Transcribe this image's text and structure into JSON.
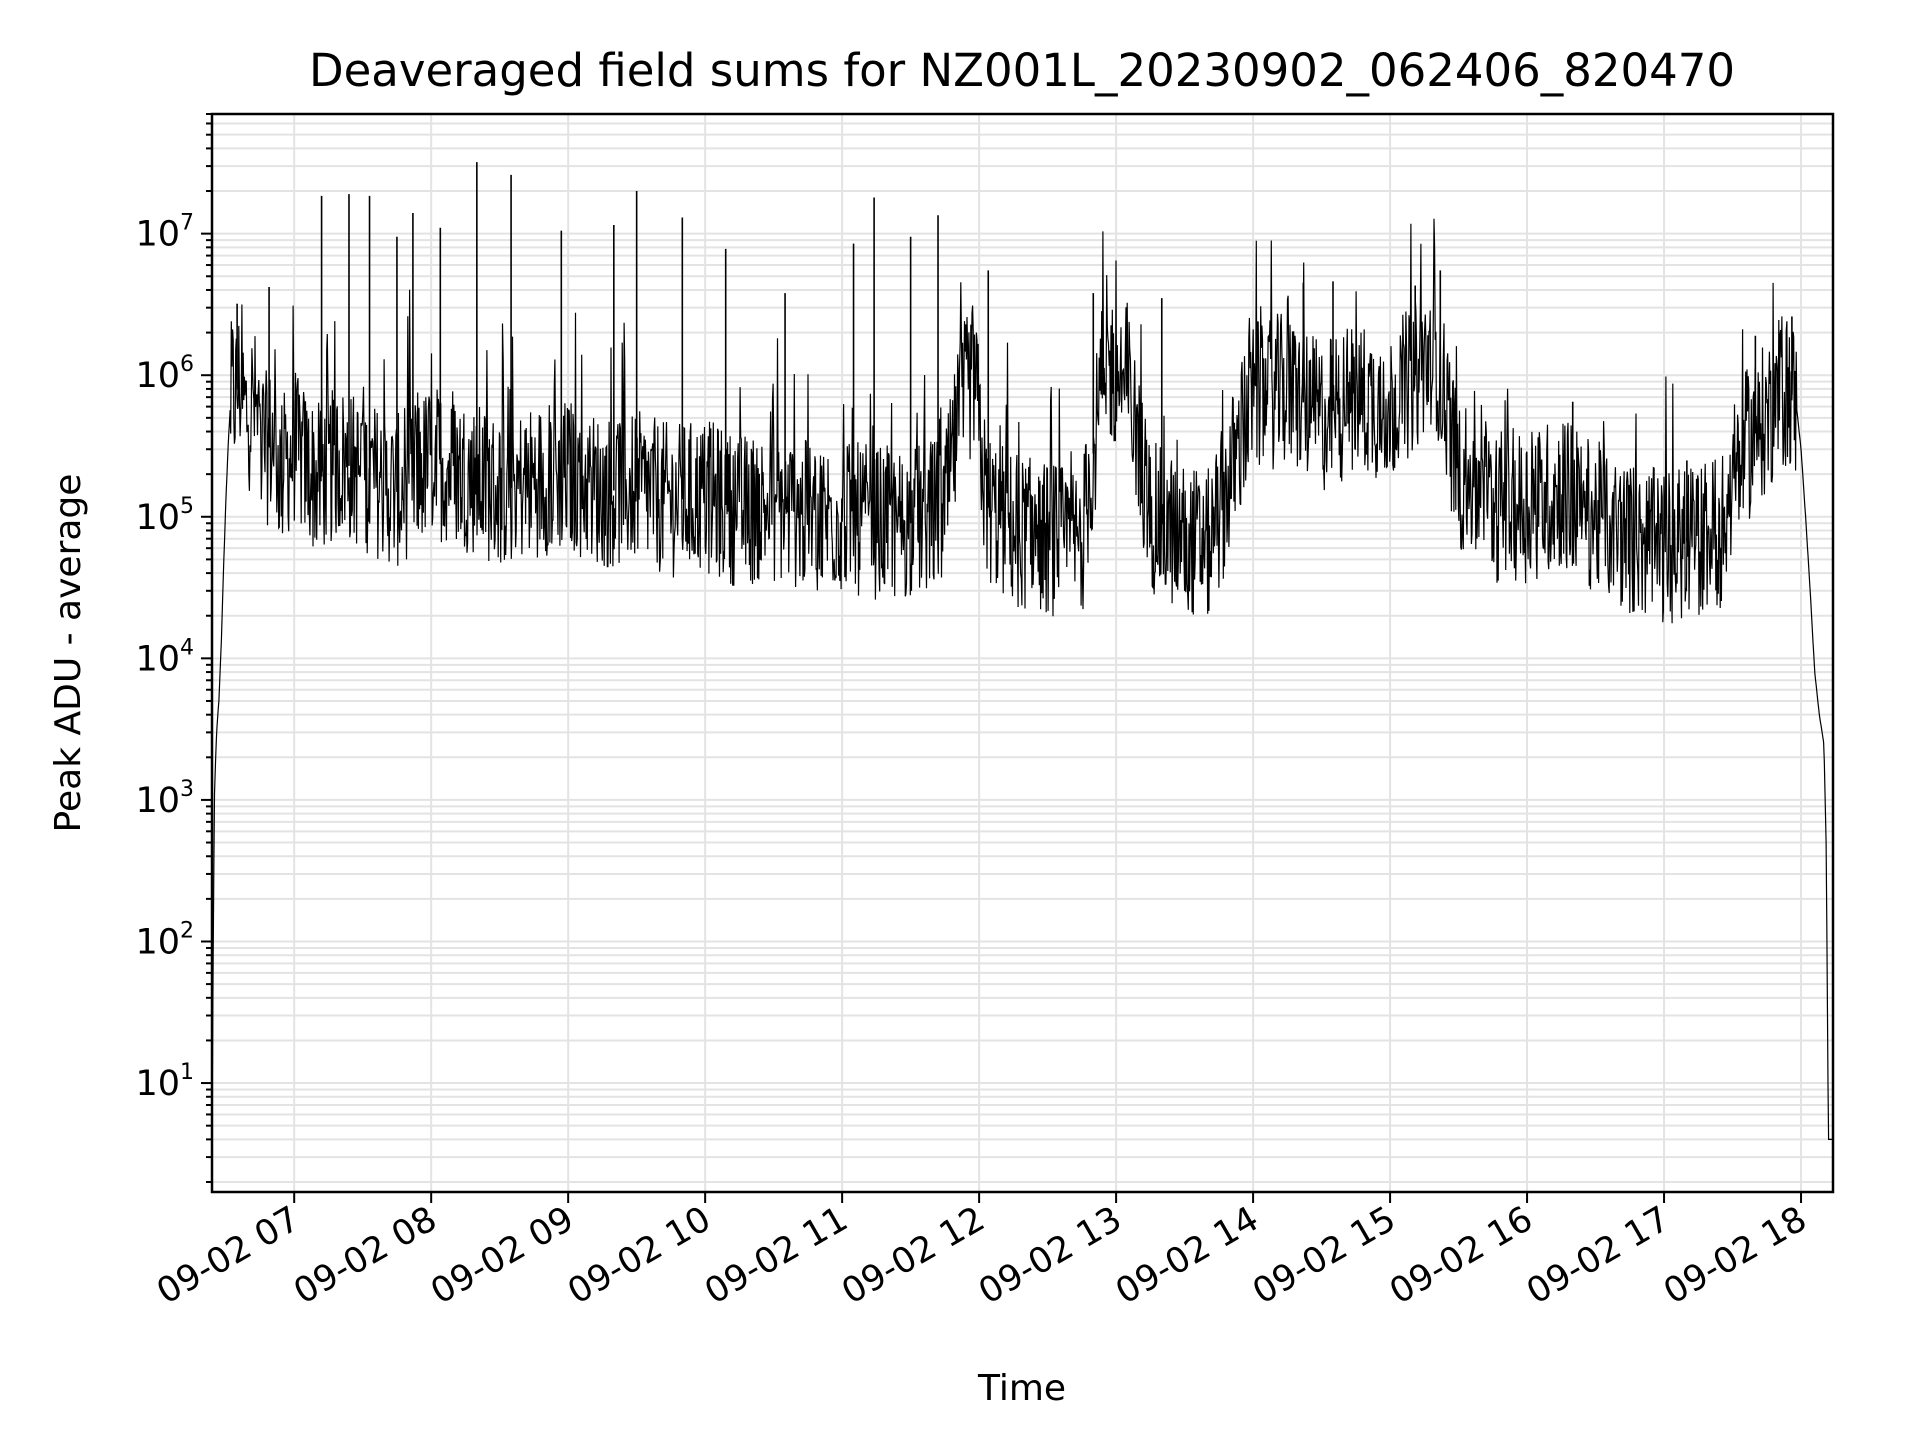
{
  "chart_data": {
    "type": "line",
    "title": "Deaveraged field sums for NZ001L_20230902_062406_820470",
    "xlabel": "Time",
    "ylabel": "Peak ADU - average",
    "y_scale": "log",
    "ylim": [
      1.7,
      70000000
    ],
    "xlim": [
      "2023-09-02 06:24",
      "2023-09-02 18:14"
    ],
    "grid": true,
    "legend": "none",
    "line_color": "#000000",
    "grid_color": "#e3e3e3",
    "x_ticks": [
      {
        "t": "2023-09-02 07:00",
        "label": "09-02 07"
      },
      {
        "t": "2023-09-02 08:00",
        "label": "09-02 08"
      },
      {
        "t": "2023-09-02 09:00",
        "label": "09-02 09"
      },
      {
        "t": "2023-09-02 10:00",
        "label": "09-02 10"
      },
      {
        "t": "2023-09-02 11:00",
        "label": "09-02 11"
      },
      {
        "t": "2023-09-02 12:00",
        "label": "09-02 12"
      },
      {
        "t": "2023-09-02 13:00",
        "label": "09-02 13"
      },
      {
        "t": "2023-09-02 14:00",
        "label": "09-02 14"
      },
      {
        "t": "2023-09-02 15:00",
        "label": "09-02 15"
      },
      {
        "t": "2023-09-02 16:00",
        "label": "09-02 16"
      },
      {
        "t": "2023-09-02 17:00",
        "label": "09-02 17"
      },
      {
        "t": "2023-09-02 18:00",
        "label": "09-02 18"
      }
    ],
    "y_ticks": [
      {
        "value": 10,
        "base": "10",
        "exp": "1"
      },
      {
        "value": 100,
        "base": "10",
        "exp": "2"
      },
      {
        "value": 1000,
        "base": "10",
        "exp": "3"
      },
      {
        "value": 10000,
        "base": "10",
        "exp": "4"
      },
      {
        "value": 100000,
        "base": "10",
        "exp": "5"
      },
      {
        "value": 1000000,
        "base": "10",
        "exp": "6"
      },
      {
        "value": 10000000,
        "base": "10",
        "exp": "7"
      }
    ],
    "series": [
      {
        "x": [
          "2023-09-02 06:24",
          "2023-09-02 06:25",
          "2023-09-02 06:26",
          "2023-09-02 06:27",
          "2023-09-02 06:28",
          "2023-09-02 06:29",
          "2023-09-02 06:30",
          "2023-09-02 06:31",
          "2023-09-02 06:32",
          "2023-09-02 06:33",
          "2023-09-02 06:34",
          "2023-09-02 06:36",
          "2023-09-02 06:38",
          "2023-09-02 06:40",
          "2023-09-02 06:42",
          "2023-09-02 06:45",
          "2023-09-02 06:48",
          "2023-09-02 06:51",
          "2023-09-02 06:54",
          "2023-09-02 06:57",
          "2023-09-02 07:00",
          "2023-09-02 07:10",
          "2023-09-02 07:20",
          "2023-09-02 07:30",
          "2023-09-02 07:45",
          "2023-09-02 08:00",
          "2023-09-02 08:15",
          "2023-09-02 08:30",
          "2023-09-02 08:45",
          "2023-09-02 09:00",
          "2023-09-02 09:15",
          "2023-09-02 09:30",
          "2023-09-02 09:45",
          "2023-09-02 10:00",
          "2023-09-02 10:15",
          "2023-09-02 10:30",
          "2023-09-02 10:45",
          "2023-09-02 11:00",
          "2023-09-02 11:15",
          "2023-09-02 11:30",
          "2023-09-02 11:45",
          "2023-09-02 11:52",
          "2023-09-02 11:58",
          "2023-09-02 12:03",
          "2023-09-02 12:15",
          "2023-09-02 12:30",
          "2023-09-02 12:45",
          "2023-09-02 12:55",
          "2023-09-02 13:05",
          "2023-09-02 13:15",
          "2023-09-02 13:30",
          "2023-09-02 13:40",
          "2023-09-02 13:45",
          "2023-09-02 14:00",
          "2023-09-02 14:15",
          "2023-09-02 14:30",
          "2023-09-02 14:45",
          "2023-09-02 15:00",
          "2023-09-02 15:15",
          "2023-09-02 15:20",
          "2023-09-02 15:30",
          "2023-09-02 15:45",
          "2023-09-02 16:00",
          "2023-09-02 16:15",
          "2023-09-02 16:30",
          "2023-09-02 16:45",
          "2023-09-02 17:00",
          "2023-09-02 17:15",
          "2023-09-02 17:25",
          "2023-09-02 17:35",
          "2023-09-02 17:45",
          "2023-09-02 17:50",
          "2023-09-02 17:55",
          "2023-09-02 17:58",
          "2023-09-02 18:00",
          "2023-09-02 18:02",
          "2023-09-02 18:04",
          "2023-09-02 18:06",
          "2023-09-02 18:08",
          "2023-09-02 18:10",
          "2023-09-02 18:11",
          "2023-09-02 18:12",
          "2023-09-02 18:13",
          "2023-09-02 18:14"
        ],
        "y": [
          4,
          1000,
          3000,
          5000,
          12000,
          40000,
          120000,
          300000,
          600000,
          800000,
          700000,
          900000,
          600000,
          500000,
          700000,
          400000,
          300000,
          350000,
          200000,
          250000,
          300000,
          180000,
          250000,
          200000,
          150000,
          250000,
          200000,
          150000,
          180000,
          200000,
          150000,
          160000,
          130000,
          140000,
          110000,
          120000,
          100000,
          100000,
          90000,
          90000,
          110000,
          600000,
          1000000,
          120000,
          80000,
          70000,
          65000,
          1200000,
          900000,
          100000,
          70000,
          60000,
          100000,
          700000,
          800000,
          500000,
          700000,
          600000,
          1200000,
          1500000,
          200000,
          120000,
          120000,
          150000,
          100000,
          70000,
          60000,
          70000,
          80000,
          300000,
          500000,
          700000,
          800000,
          600000,
          300000,
          100000,
          30000,
          8000,
          4000,
          2500,
          500,
          4,
          4,
          4
        ],
        "spikes": [
          {
            "x": "2023-09-02 06:35",
            "y": 3200000
          },
          {
            "x": "2023-09-02 06:49",
            "y": 4200000
          },
          {
            "x": "2023-09-02 07:12",
            "y": 18500000
          },
          {
            "x": "2023-09-02 07:24",
            "y": 19000000
          },
          {
            "x": "2023-09-02 07:33",
            "y": 18500000
          },
          {
            "x": "2023-09-02 07:45",
            "y": 9500000
          },
          {
            "x": "2023-09-02 07:52",
            "y": 14000000
          },
          {
            "x": "2023-09-02 08:04",
            "y": 11000000
          },
          {
            "x": "2023-09-02 08:20",
            "y": 32000000
          },
          {
            "x": "2023-09-02 08:35",
            "y": 26000000
          },
          {
            "x": "2023-09-02 08:57",
            "y": 10500000
          },
          {
            "x": "2023-09-02 09:20",
            "y": 11500000
          },
          {
            "x": "2023-09-02 09:30",
            "y": 20000000
          },
          {
            "x": "2023-09-02 09:50",
            "y": 13000000
          },
          {
            "x": "2023-09-02 10:09",
            "y": 7800000
          },
          {
            "x": "2023-09-02 10:35",
            "y": 3800000
          },
          {
            "x": "2023-09-02 11:05",
            "y": 8500000
          },
          {
            "x": "2023-09-02 11:14",
            "y": 18000000
          },
          {
            "x": "2023-09-02 11:30",
            "y": 9500000
          },
          {
            "x": "2023-09-02 11:42",
            "y": 13500000
          },
          {
            "x": "2023-09-02 12:04",
            "y": 5500000
          },
          {
            "x": "2023-09-02 12:50",
            "y": 3800000
          },
          {
            "x": "2023-09-02 13:20",
            "y": 3500000
          },
          {
            "x": "2023-09-02 14:22",
            "y": 4500000
          },
          {
            "x": "2023-09-02 14:35",
            "y": 4600000
          },
          {
            "x": "2023-09-02 15:11",
            "y": 4300000
          },
          {
            "x": "2023-09-02 15:22",
            "y": 5500000
          },
          {
            "x": "2023-09-02 16:20",
            "y": 650000
          },
          {
            "x": "2023-09-02 17:10",
            "y": 250000
          },
          {
            "x": "2023-09-02 17:40",
            "y": 1900000
          },
          {
            "x": "2023-09-02 17:56",
            "y": 2600000
          }
        ]
      }
    ]
  }
}
